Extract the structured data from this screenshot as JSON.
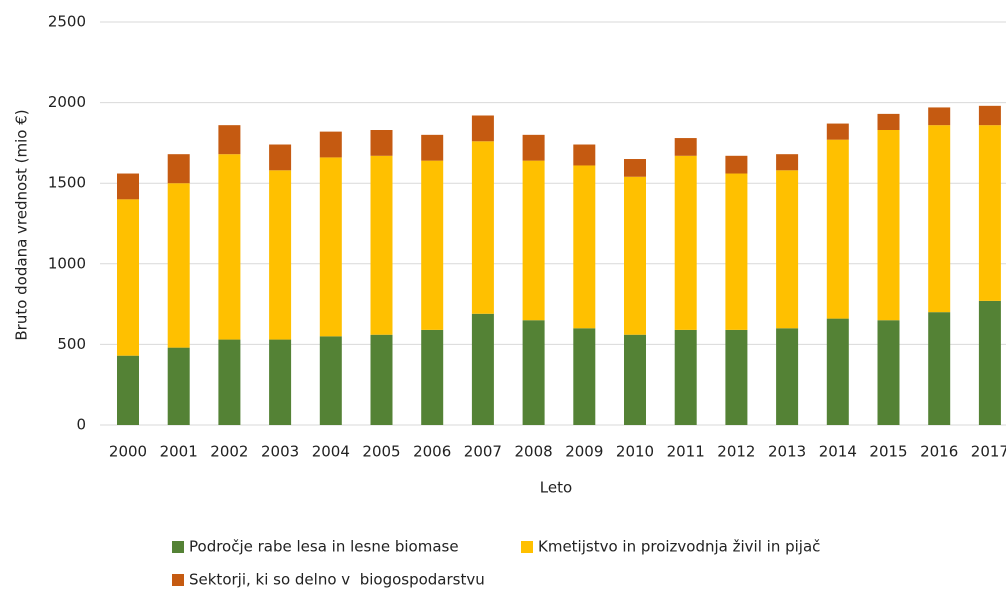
{
  "chart_data": {
    "type": "stacked-bar",
    "y_label": "Bruto dodana vrednost (mio €)",
    "x_label": "Leto",
    "categories": [
      "2000",
      "2001",
      "2002",
      "2003",
      "2004",
      "2005",
      "2006",
      "2007",
      "2008",
      "2009",
      "2010",
      "2011",
      "2012",
      "2013",
      "2014",
      "2015",
      "2016",
      "2017"
    ],
    "series": [
      {
        "name": "Področje rabe lesa in lesne biomase",
        "color": "#548235",
        "values": [
          430,
          480,
          530,
          530,
          550,
          560,
          590,
          690,
          650,
          600,
          560,
          590,
          590,
          600,
          660,
          650,
          700,
          770
        ]
      },
      {
        "name": "Kmetijstvo in proizvodnja živil in pijač",
        "color": "#ffc000",
        "values": [
          970,
          1020,
          1150,
          1050,
          1110,
          1110,
          1050,
          1070,
          990,
          1010,
          980,
          1080,
          970,
          980,
          1110,
          1180,
          1160,
          1090
        ]
      },
      {
        "name": "Sektorji, ki so delno v  biogospodarstvu",
        "color": "#c55a11",
        "values": [
          160,
          180,
          180,
          160,
          160,
          160,
          160,
          160,
          160,
          130,
          110,
          110,
          110,
          100,
          100,
          100,
          110,
          120
        ]
      }
    ],
    "ylim": [
      0,
      2500
    ],
    "yticks": [
      0,
      500,
      1000,
      1500,
      2000,
      2500
    ],
    "grid": true,
    "legend": "bottom"
  }
}
